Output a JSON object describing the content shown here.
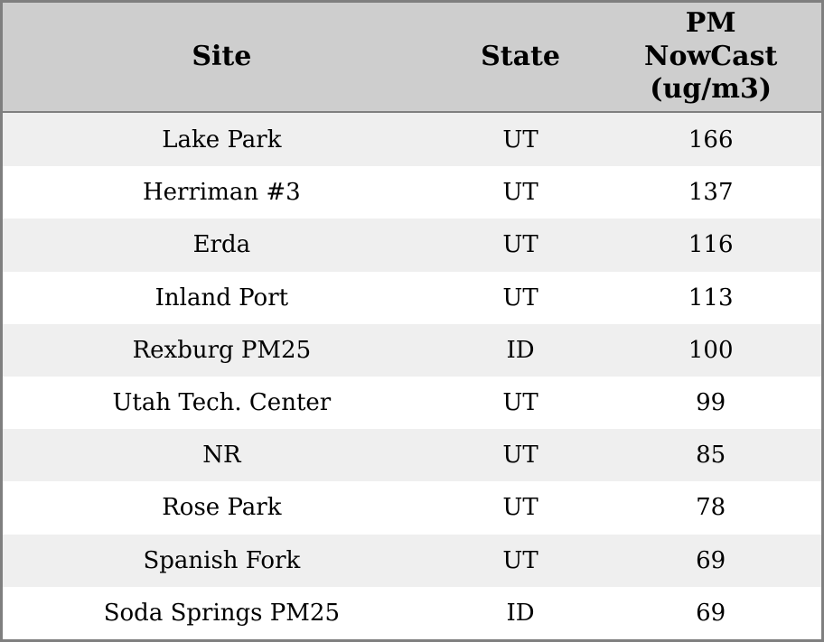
{
  "chart_data": {
    "type": "table",
    "columns": [
      {
        "id": "site",
        "label": "Site"
      },
      {
        "id": "state",
        "label": "State"
      },
      {
        "id": "pm_nowcast_ugm3",
        "label": "PM\nNowCast\n(ug/m3)"
      }
    ],
    "rows": [
      {
        "site": "Lake Park",
        "state": "UT",
        "pm_nowcast": 166
      },
      {
        "site": "Herriman #3",
        "state": "UT",
        "pm_nowcast": 137
      },
      {
        "site": "Erda",
        "state": "UT",
        "pm_nowcast": 116
      },
      {
        "site": "Inland Port",
        "state": "UT",
        "pm_nowcast": 113
      },
      {
        "site": "Rexburg PM25",
        "state": "ID",
        "pm_nowcast": 100
      },
      {
        "site": "Utah Tech. Center",
        "state": "UT",
        "pm_nowcast": 99
      },
      {
        "site": "NR",
        "state": "UT",
        "pm_nowcast": 85
      },
      {
        "site": "Rose Park",
        "state": "UT",
        "pm_nowcast": 78
      },
      {
        "site": "Spanish Fork",
        "state": "UT",
        "pm_nowcast": 69
      },
      {
        "site": "Soda Springs PM25",
        "state": "ID",
        "pm_nowcast": 69
      }
    ]
  },
  "colors": {
    "border": "#7f7f7f",
    "header_bg": "#cecece",
    "row_stripe_bg": "#efefef",
    "row_bg": "#ffffff",
    "text": "#000000"
  }
}
